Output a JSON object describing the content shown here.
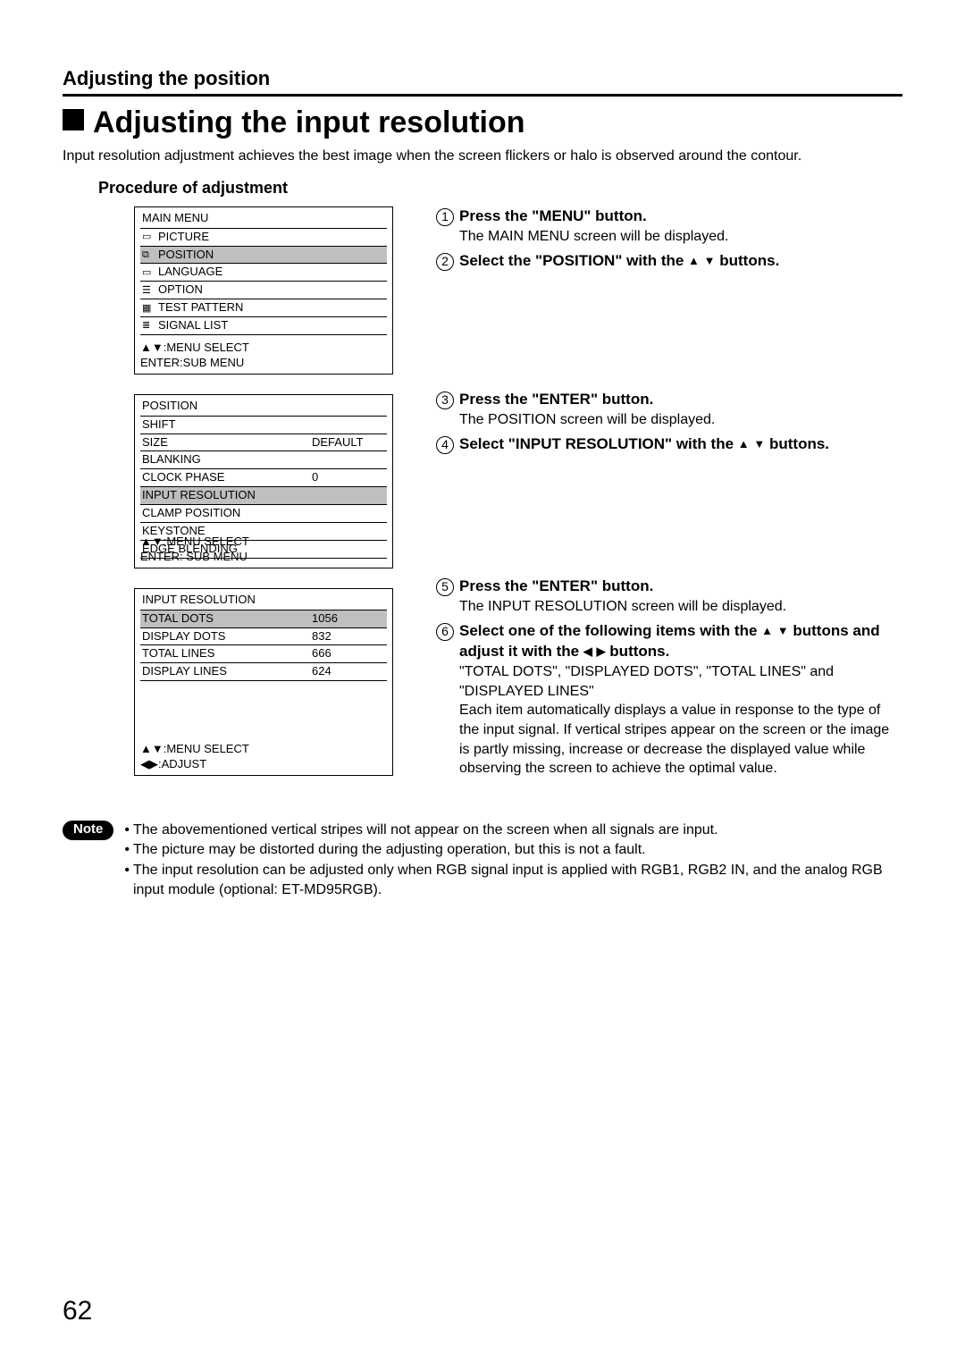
{
  "breadcrumb": "Adjusting the position",
  "title": "Adjusting the input resolution",
  "intro": "Input resolution adjustment achieves the best image when the screen flickers or halo is observed around the contour.",
  "proc_heading": "Procedure of adjustment",
  "page_number": "62",
  "glyphs": {
    "up": "▲",
    "down": "▼",
    "left": "◀",
    "right": "▶"
  },
  "main_menu": {
    "title": "MAIN MENU",
    "items": [
      {
        "icon": "▭",
        "label": "PICTURE",
        "hl": false
      },
      {
        "icon": "⧉",
        "label": "POSITION",
        "hl": true
      },
      {
        "icon": "▭",
        "label": "LANGUAGE",
        "hl": false
      },
      {
        "icon": "☰",
        "label": "OPTION",
        "hl": false
      },
      {
        "icon": "▦",
        "label": "TEST PATTERN",
        "hl": false
      },
      {
        "icon": "≣",
        "label": "SIGNAL LIST",
        "hl": false
      }
    ],
    "footer1": "▲▼:MENU SELECT",
    "footer2": "ENTER:SUB MENU"
  },
  "position_menu": {
    "title": "POSITION",
    "items": [
      {
        "label": "SHIFT",
        "val": "",
        "hl": false
      },
      {
        "label": "SIZE",
        "val": "DEFAULT",
        "hl": false
      },
      {
        "label": "BLANKING",
        "val": "",
        "hl": false
      },
      {
        "label": "CLOCK PHASE",
        "val": "0",
        "hl": false
      },
      {
        "label": "INPUT RESOLUTION",
        "val": "",
        "hl": true
      },
      {
        "label": "CLAMP POSITION",
        "val": "",
        "hl": false
      },
      {
        "label": "KEYSTONE",
        "val": "",
        "hl": false
      },
      {
        "label": "EDGE BLENDING",
        "val": "",
        "hl": false
      }
    ],
    "footer1": "▲▼:MENU SELECT",
    "footer2": "ENTER: SUB MENU"
  },
  "input_res_menu": {
    "title": "INPUT RESOLUTION",
    "items": [
      {
        "label": "TOTAL DOTS",
        "val": "1056",
        "hl": true
      },
      {
        "label": "DISPLAY DOTS",
        "val": "832",
        "hl": false
      },
      {
        "label": "TOTAL LINES",
        "val": "666",
        "hl": false
      },
      {
        "label": "DISPLAY LINES",
        "val": "624",
        "hl": false
      }
    ],
    "footer1": "▲▼:MENU SELECT",
    "footer2": "◀▶:ADJUST"
  },
  "steps": {
    "s1": {
      "head": "Press the \"MENU\" button.",
      "sub": "The MAIN MENU screen will be displayed."
    },
    "s2": {
      "head_a": "Select the \"POSITION\" with the ",
      "head_b": " buttons."
    },
    "s3": {
      "head": "Press the \"ENTER\" button.",
      "sub": "The POSITION screen will be displayed."
    },
    "s4": {
      "head_a": "Select \"INPUT RESOLUTION\" with the ",
      "head_b": " buttons."
    },
    "s5": {
      "head": "Press the \"ENTER\" button.",
      "sub": "The INPUT RESOLUTION screen will be displayed."
    },
    "s6": {
      "head_a": "Select one of the following items with the ",
      "head_b": " buttons and adjust it with the ",
      "head_c": " buttons.",
      "sub1": "\"TOTAL DOTS\", \"DISPLAYED DOTS\", \"TOTAL LINES\" and \"DISPLAYED LINES\"",
      "sub2": "Each item automatically displays a value in response to the type of the input signal. If vertical stripes appear on the screen or the image is partly missing, increase or decrease the displayed value while observing the screen to achieve the optimal value."
    }
  },
  "notes": {
    "badge": "Note",
    "items": [
      "The abovementioned vertical stripes will not appear on the screen when all signals are input.",
      "The picture may be distorted during the adjusting operation, but this is not a fault.",
      "The input resolution can be adjusted only when RGB signal input is applied with RGB1, RGB2 IN, and the analog RGB input module (optional: ET-MD95RGB)."
    ]
  }
}
